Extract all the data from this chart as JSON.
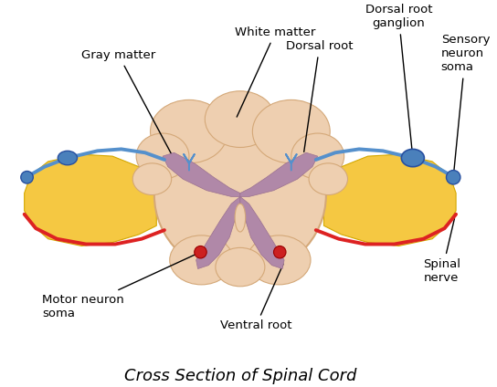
{
  "title": "Cross Section of Spinal Cord",
  "title_fontsize": 13,
  "bg_color": "#ffffff",
  "labels": {
    "white_matter": "White matter",
    "gray_matter": "Gray matter",
    "dorsal_root": "Dorsal root",
    "dorsal_root_ganglion": "Dorsal root\nganglion",
    "sensory_neuron_soma": "Sensory\nneuron\nsoma",
    "spinal_nerve": "Spinal\nnerve",
    "ventral_root": "Ventral root",
    "motor_neuron_soma": "Motor neuron\nsoma"
  },
  "colors": {
    "white_matter": "#eecfb0",
    "white_matter_edge": "#d4a878",
    "gray_matter": "#b088a8",
    "gray_matter_edge": "#9a7090",
    "nerve_yellow": "#f5c842",
    "nerve_yellow_edge": "#d4a800",
    "nerve_blue": "#5590cc",
    "nerve_red": "#dd2222",
    "ganglion_blue": "#4a80bb",
    "soma_red": "#cc2020",
    "text": "#000000",
    "bg": "#ffffff"
  }
}
